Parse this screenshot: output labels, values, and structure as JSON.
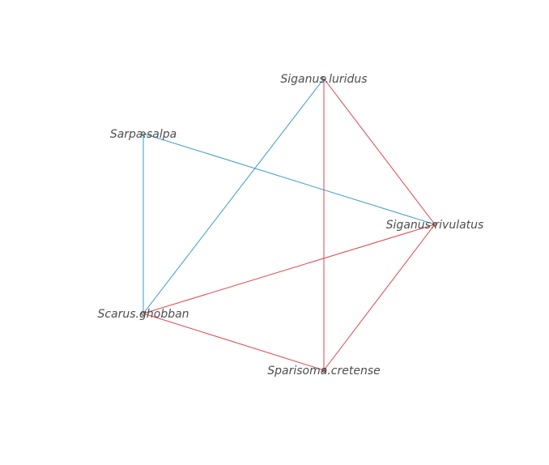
{
  "network": {
    "nodes": [
      {
        "id": "siganus_luridus",
        "label": "Siganus.luridus"
      },
      {
        "id": "sarpa_salpa",
        "label": "Sarpa.salpa"
      },
      {
        "id": "siganus_rivulatus",
        "label": "Siganus.rivulatus"
      },
      {
        "id": "scarus_ghobban",
        "label": "Scarus.ghobban"
      },
      {
        "id": "sparisoma_cretense",
        "label": "Sparisoma.cretense"
      }
    ],
    "edges": [
      {
        "source": "sarpa_salpa",
        "target": "siganus_rivulatus",
        "color": "#3a9bc8"
      },
      {
        "source": "sarpa_salpa",
        "target": "scarus_ghobban",
        "color": "#3a9bc8"
      },
      {
        "source": "siganus_luridus",
        "target": "scarus_ghobban",
        "color": "#3a9bc8"
      },
      {
        "source": "siganus_luridus",
        "target": "siganus_rivulatus",
        "color": "#e0444b"
      },
      {
        "source": "siganus_luridus",
        "target": "sparisoma_cretense",
        "color": "#e0444b"
      },
      {
        "source": "siganus_rivulatus",
        "target": "scarus_ghobban",
        "color": "#e0444b"
      },
      {
        "source": "siganus_rivulatus",
        "target": "sparisoma_cretense",
        "color": "#e0444b"
      },
      {
        "source": "scarus_ghobban",
        "target": "sparisoma_cretense",
        "color": "#e0444b"
      }
    ],
    "node_color": "#222222"
  }
}
